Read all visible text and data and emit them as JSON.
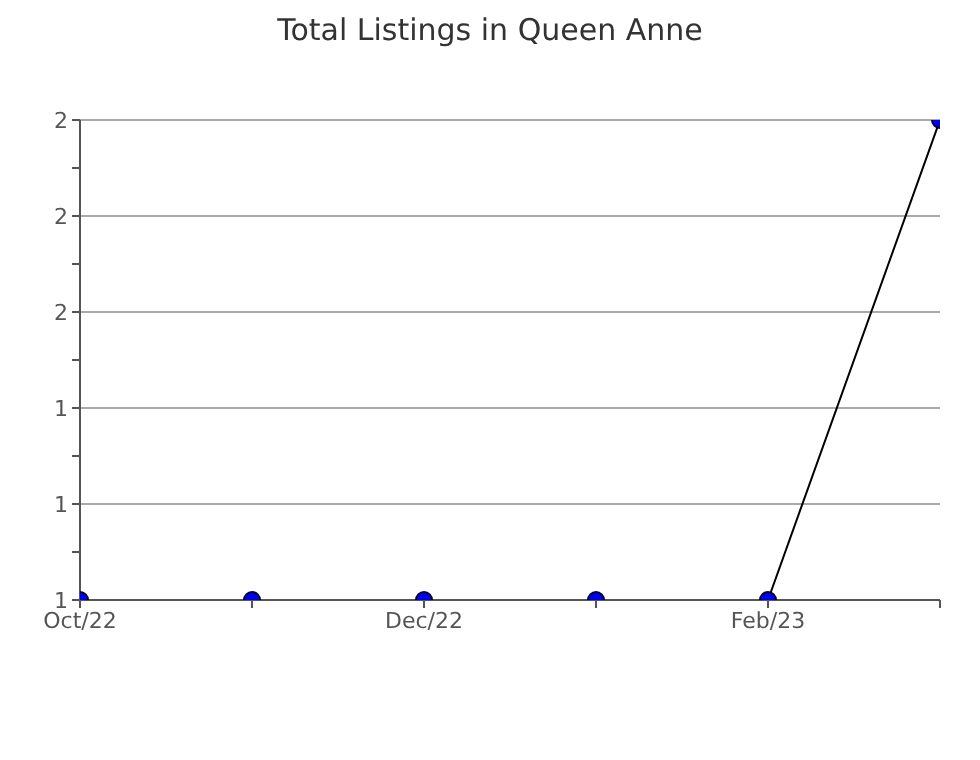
{
  "chart_data": {
    "type": "line",
    "title": "Total Listings in Queen Anne",
    "categories": [
      "Oct/22",
      null,
      "Dec/22",
      null,
      "Feb/23",
      null
    ],
    "series": [
      {
        "color": "#000000",
        "values": [
          1,
          1,
          1,
          1,
          1,
          2
        ]
      }
    ],
    "ylim": [
      1,
      2
    ],
    "yticks": [
      {
        "value": 1,
        "label": "1"
      },
      {
        "value": 1.1,
        "label": null
      },
      {
        "value": 1.2,
        "label": "1"
      },
      {
        "value": 1.3,
        "label": null
      },
      {
        "value": 1.4,
        "label": "1"
      },
      {
        "value": 1.5,
        "label": null
      },
      {
        "value": 1.6,
        "label": "2"
      },
      {
        "value": 1.7,
        "label": null
      },
      {
        "value": 1.8,
        "label": "2"
      },
      {
        "value": 1.9,
        "label": null
      },
      {
        "value": 2,
        "label": "2"
      }
    ],
    "grid": "y",
    "marker": "circle",
    "line_style": "solid",
    "legend": false
  }
}
